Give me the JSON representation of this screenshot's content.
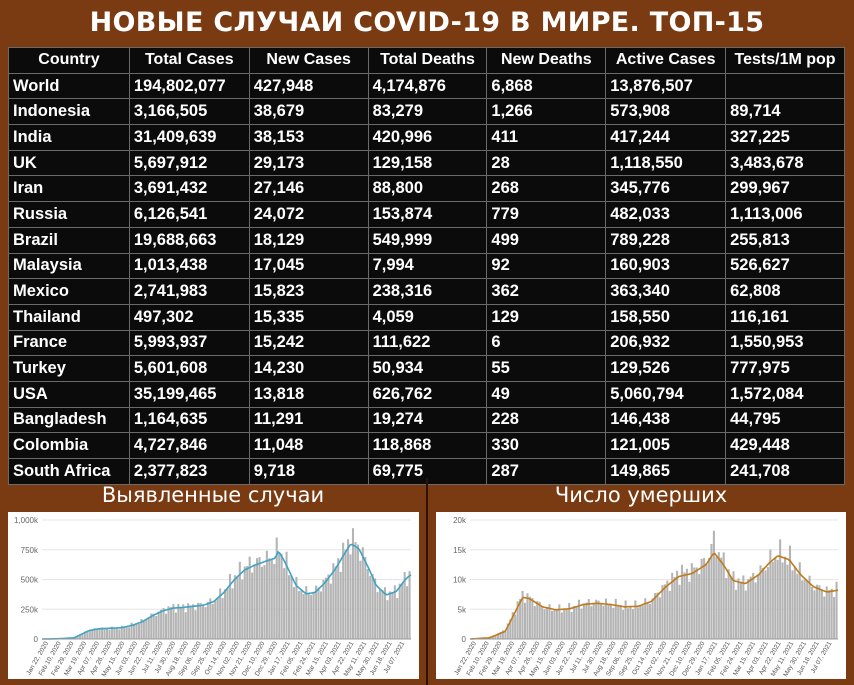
{
  "title": "НОВЫЕ СЛУЧАИ COVID-19 В МИРЕ. ТОП-15",
  "table": {
    "headers": [
      "Country",
      "Total Cases",
      "New Cases",
      "Total Deaths",
      "New Deaths",
      "Active Cases",
      "Tests/1M pop"
    ],
    "rows": [
      [
        "World",
        "194,802,077",
        "427,948",
        "4,174,876",
        "6,868",
        "13,876,507",
        ""
      ],
      [
        "Indonesia",
        "3,166,505",
        "38,679",
        "83,279",
        "1,266",
        "573,908",
        "89,714"
      ],
      [
        "India",
        "31,409,639",
        "38,153",
        "420,996",
        "411",
        "417,244",
        "327,225"
      ],
      [
        "UK",
        "5,697,912",
        "29,173",
        "129,158",
        "28",
        "1,118,550",
        "3,483,678"
      ],
      [
        "Iran",
        "3,691,432",
        "27,146",
        "88,800",
        "268",
        "345,776",
        "299,967"
      ],
      [
        "Russia",
        "6,126,541",
        "24,072",
        "153,874",
        "779",
        "482,033",
        "1,113,006"
      ],
      [
        "Brazil",
        "19,688,663",
        "18,129",
        "549,999",
        "499",
        "789,228",
        "255,813"
      ],
      [
        "Malaysia",
        "1,013,438",
        "17,045",
        "7,994",
        "92",
        "160,903",
        "526,627"
      ],
      [
        "Mexico",
        "2,741,983",
        "15,823",
        "238,316",
        "362",
        "363,340",
        "62,808"
      ],
      [
        "Thailand",
        "497,302",
        "15,335",
        "4,059",
        "129",
        "158,550",
        "116,161"
      ],
      [
        "France",
        "5,993,937",
        "15,242",
        "111,622",
        "6",
        "206,932",
        "1,550,953"
      ],
      [
        "Turkey",
        "5,601,608",
        "14,230",
        "50,934",
        "55",
        "129,526",
        "777,975"
      ],
      [
        "USA",
        "35,199,465",
        "13,818",
        "626,762",
        "49",
        "5,060,794",
        "1,572,084"
      ],
      [
        "Bangladesh",
        "1,164,635",
        "11,291",
        "19,274",
        "228",
        "146,438",
        "44,795"
      ],
      [
        "Colombia",
        "4,727,846",
        "11,048",
        "118,868",
        "330",
        "121,005",
        "429,448"
      ],
      [
        "South Africa",
        "2,377,823",
        "9,718",
        "69,775",
        "287",
        "149,865",
        "241,708"
      ]
    ]
  },
  "colors": {
    "background": "#7a3a12",
    "table_bg": "#0b0b0b",
    "header_yellow": "#f5f500",
    "header_red": "#f28080",
    "bar_gray": "#b4b4b4",
    "cases_line": "#3ea3c4",
    "deaths_line": "#c07a1a"
  },
  "chart_data": [
    {
      "type": "bar",
      "title": "Выявленные случаи",
      "xlabel": "",
      "ylabel": "",
      "ylim": [
        0,
        1000000
      ],
      "yticks": [
        "0",
        "250k",
        "500k",
        "750k",
        "1,000k"
      ],
      "ytick_values": [
        0,
        250000,
        500000,
        750000,
        1000000
      ],
      "xtick_labels": [
        "Jan 22, 2020",
        "Feb 10, 2020",
        "Feb 29, 2020",
        "Mar 19, 2020",
        "Apr 07, 2020",
        "Apr 26, 2020",
        "May 15, 2020",
        "Jun 03, 2020",
        "Jun 22, 2020",
        "Jul 11, 2020",
        "Jul 30, 2020",
        "Aug 18, 2020",
        "Sep 06, 2020",
        "Sep 25, 2020",
        "Oct 14, 2020",
        "Nov 02, 2020",
        "Nov 21, 2020",
        "Dec 10, 2020",
        "Dec 29, 2020",
        "Jan 17, 2021",
        "Feb 05, 2021",
        "Feb 24, 2021",
        "Mar 15, 2021",
        "Apr 03, 2021",
        "Apr 22, 2021",
        "May 11, 2021",
        "May 30, 2021",
        "Jun 18, 2021",
        "Jul 07, 2021"
      ],
      "series": [
        {
          "kind": "bar",
          "x": [
            "2020-01-22",
            "2020-02-15",
            "2020-03-10",
            "2020-04-01",
            "2020-04-15",
            "2020-05-01",
            "2020-05-20",
            "2020-06-05",
            "2020-06-20",
            "2020-07-05",
            "2020-07-20",
            "2020-08-05",
            "2020-08-20",
            "2020-09-05",
            "2020-09-20",
            "2020-10-05",
            "2020-10-20",
            "2020-11-05",
            "2020-11-20",
            "2020-12-05",
            "2020-12-20",
            "2021-01-05",
            "2021-01-10",
            "2021-01-20",
            "2021-02-05",
            "2021-02-20",
            "2021-03-05",
            "2021-03-20",
            "2021-04-05",
            "2021-04-20",
            "2021-04-28",
            "2021-05-10",
            "2021-05-25",
            "2021-06-05",
            "2021-06-20",
            "2021-07-05",
            "2021-07-20",
            "2021-07-27"
          ],
          "values": [
            0,
            2000,
            10000,
            70000,
            90000,
            90000,
            95000,
            120000,
            150000,
            200000,
            240000,
            270000,
            270000,
            280000,
            290000,
            320000,
            400000,
            520000,
            600000,
            640000,
            660000,
            700000,
            780000,
            650000,
            450000,
            390000,
            400000,
            480000,
            600000,
            750000,
            850000,
            780000,
            600000,
            450000,
            380000,
            400000,
            520000,
            560000
          ]
        },
        {
          "kind": "line",
          "name": "",
          "x": [
            "2020-01-22",
            "2020-02-15",
            "2020-03-10",
            "2020-04-01",
            "2020-04-15",
            "2020-05-01",
            "2020-05-20",
            "2020-06-05",
            "2020-06-20",
            "2020-07-05",
            "2020-07-20",
            "2020-08-05",
            "2020-08-20",
            "2020-09-05",
            "2020-09-20",
            "2020-10-05",
            "2020-10-20",
            "2020-11-05",
            "2020-11-20",
            "2020-12-05",
            "2020-12-20",
            "2021-01-05",
            "2021-01-10",
            "2021-01-20",
            "2021-02-05",
            "2021-02-20",
            "2021-03-05",
            "2021-03-20",
            "2021-04-05",
            "2021-04-20",
            "2021-04-28",
            "2021-05-10",
            "2021-05-25",
            "2021-06-05",
            "2021-06-20",
            "2021-07-05",
            "2021-07-20",
            "2021-07-27"
          ],
          "values": [
            0,
            2000,
            10000,
            70000,
            85000,
            90000,
            95000,
            115000,
            145000,
            195000,
            235000,
            260000,
            265000,
            275000,
            285000,
            315000,
            390000,
            500000,
            580000,
            620000,
            650000,
            680000,
            740000,
            640000,
            450000,
            380000,
            390000,
            470000,
            590000,
            730000,
            800000,
            760000,
            590000,
            450000,
            370000,
            400000,
            510000,
            540000
          ]
        }
      ]
    },
    {
      "type": "bar",
      "title": "Число умерших",
      "xlabel": "",
      "ylabel": "",
      "ylim": [
        0,
        20000
      ],
      "yticks": [
        "0",
        "5k",
        "10k",
        "15k",
        "20k"
      ],
      "ytick_values": [
        0,
        5000,
        10000,
        15000,
        20000
      ],
      "xtick_labels": [
        "Jan 22, 2020",
        "Feb 10, 2020",
        "Feb 29, 2020",
        "Mar 19, 2020",
        "Apr 07, 2020",
        "Apr 26, 2020",
        "May 15, 2020",
        "Jun 03, 2020",
        "Jun 22, 2020",
        "Jul 11, 2020",
        "Jul 30, 2020",
        "Aug 18, 2020",
        "Sep 06, 2020",
        "Sep 25, 2020",
        "Oct 14, 2020",
        "Nov 02, 2020",
        "Nov 21, 2020",
        "Dec 10, 2020",
        "Dec 29, 2020",
        "Jan 17, 2021",
        "Feb 05, 2021",
        "Feb 24, 2021",
        "Mar 15, 2021",
        "Apr 03, 2021",
        "Apr 22, 2021",
        "May 11, 2021",
        "May 30, 2021",
        "Jun 18, 2021",
        "Jul 07, 2021"
      ],
      "series": [
        {
          "kind": "bar",
          "x": [
            "2020-01-22",
            "2020-02-20",
            "2020-03-15",
            "2020-04-10",
            "2020-04-20",
            "2020-05-10",
            "2020-05-30",
            "2020-06-20",
            "2020-07-10",
            "2020-07-30",
            "2020-08-20",
            "2020-09-10",
            "2020-09-30",
            "2020-10-20",
            "2020-11-10",
            "2020-11-30",
            "2020-12-20",
            "2021-01-10",
            "2021-01-22",
            "2021-02-05",
            "2021-02-20",
            "2021-03-10",
            "2021-03-30",
            "2021-04-15",
            "2021-04-28",
            "2021-05-15",
            "2021-06-01",
            "2021-06-20",
            "2021-07-10",
            "2021-07-27"
          ],
          "values": [
            0,
            200,
            1500,
            7500,
            7000,
            5500,
            5000,
            5200,
            6000,
            6200,
            6000,
            5500,
            5600,
            6500,
            9000,
            11000,
            11500,
            13000,
            16500,
            13000,
            10000,
            9500,
            11000,
            13000,
            14500,
            13500,
            11000,
            9000,
            8000,
            8500
          ]
        },
        {
          "kind": "line",
          "name": "",
          "x": [
            "2020-01-22",
            "2020-02-20",
            "2020-03-15",
            "2020-04-10",
            "2020-04-20",
            "2020-05-10",
            "2020-05-30",
            "2020-06-20",
            "2020-07-10",
            "2020-07-30",
            "2020-08-20",
            "2020-09-10",
            "2020-09-30",
            "2020-10-20",
            "2020-11-10",
            "2020-11-30",
            "2020-12-20",
            "2021-01-10",
            "2021-01-22",
            "2021-02-05",
            "2021-02-20",
            "2021-03-10",
            "2021-03-30",
            "2021-04-15",
            "2021-04-28",
            "2021-05-15",
            "2021-06-01",
            "2021-06-20",
            "2021-07-10",
            "2021-07-27"
          ],
          "values": [
            0,
            200,
            1300,
            7000,
            6800,
            5400,
            4900,
            5100,
            5800,
            6000,
            5800,
            5400,
            5500,
            6300,
            8700,
            10500,
            11000,
            12500,
            14500,
            12500,
            9800,
            9300,
            10800,
            12800,
            14000,
            13300,
            10800,
            8800,
            7900,
            8200
          ]
        }
      ]
    }
  ]
}
